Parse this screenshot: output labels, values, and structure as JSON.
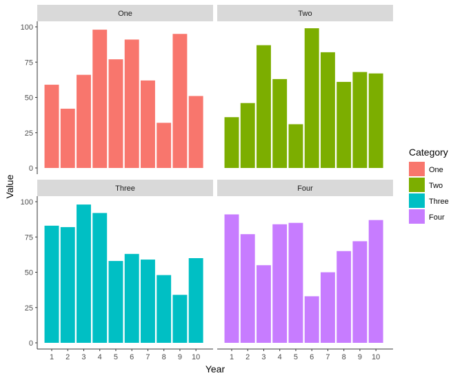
{
  "chart_data": {
    "type": "bar",
    "layout": "facet_wrap",
    "xlabel": "Year",
    "ylabel": "Value",
    "x": [
      1,
      2,
      3,
      4,
      5,
      6,
      7,
      8,
      9,
      10
    ],
    "x_tick_labels": [
      "1",
      "2",
      "3",
      "4",
      "5",
      "6",
      "7",
      "8",
      "9",
      "10"
    ],
    "ylim": [
      0,
      100
    ],
    "y_ticks": [
      0,
      25,
      50,
      75,
      100
    ],
    "y_tick_labels": [
      "0",
      "25",
      "50",
      "75",
      "100"
    ],
    "grid": false,
    "legend": {
      "title": "Category",
      "position": "right",
      "entries": [
        "One",
        "Two",
        "Three",
        "Four"
      ]
    },
    "series": [
      {
        "name": "One",
        "color": "#F8766D",
        "values": [
          59,
          42,
          66,
          98,
          77,
          91,
          62,
          32,
          95,
          51
        ]
      },
      {
        "name": "Two",
        "color": "#7CAE00",
        "values": [
          36,
          46,
          87,
          63,
          31,
          99,
          82,
          61,
          68,
          67
        ]
      },
      {
        "name": "Three",
        "color": "#00BFC4",
        "values": [
          83,
          82,
          98,
          92,
          58,
          63,
          59,
          48,
          34,
          60
        ]
      },
      {
        "name": "Four",
        "color": "#C77CFF",
        "values": [
          91,
          77,
          55,
          84,
          85,
          33,
          50,
          65,
          72,
          87
        ]
      }
    ]
  },
  "colors": {
    "strip_background": "#D9D9D9",
    "axis_line": "#333333"
  }
}
